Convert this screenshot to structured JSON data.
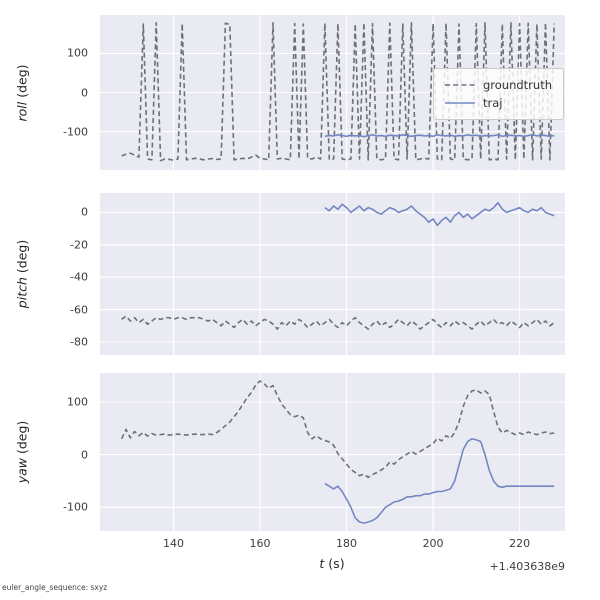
{
  "style": {
    "axes_bg": "#eaeaf2",
    "grid": "#ffffff",
    "tick_color": "#3d3d3d",
    "groundtruth_color": "#6d7176",
    "traj_color": "#7388c2"
  },
  "footer_note": "euler_angle_sequence: sxyz",
  "xaxis": {
    "label_var": "t",
    "label_unit": "(s)",
    "offset_text": "+1.403638e9",
    "lim": [
      123,
      230.5
    ],
    "ticks": [
      140,
      160,
      180,
      200,
      220
    ]
  },
  "chart_data": [
    {
      "type": "line",
      "ylabel_var": "roll",
      "ylabel_unit": "(deg)",
      "ylim": [
        -198,
        198
      ],
      "yticks": [
        -100,
        0,
        100
      ],
      "legend_position": "center right",
      "series": [
        {
          "name": "groundtruth",
          "style": "dashed",
          "color": "#6d7176",
          "x0": 128,
          "dx": 1,
          "y": [
            -162,
            -158,
            -155,
            -160,
            -165,
            175,
            -170,
            -172,
            178,
            -174,
            -170,
            -171,
            -173,
            -170,
            176,
            -172,
            -170,
            -168,
            -170,
            -172,
            -170,
            -169,
            -171,
            -170,
            177,
            174,
            -172,
            -170,
            -168,
            -170,
            -165,
            -160,
            -168,
            -170,
            -172,
            178,
            -170,
            -168,
            -170,
            -172,
            176,
            -170,
            175,
            -168,
            -170,
            -165,
            -170,
            177,
            -172,
            -170,
            176,
            -170,
            -172,
            -170,
            175,
            -170,
            178,
            -172,
            176,
            -170,
            -172,
            -170,
            177,
            -170,
            -172,
            175,
            -170,
            178,
            -172,
            -170,
            -168,
            -170,
            176,
            -170,
            -172,
            177,
            -170,
            -172,
            175,
            -170,
            -172,
            -170,
            176,
            -170,
            178,
            -172,
            -170,
            -172,
            175,
            -170,
            178,
            -172,
            176,
            -170,
            177,
            -172,
            175,
            -170,
            178,
            -172,
            176
          ]
        },
        {
          "name": "traj",
          "style": "solid",
          "color": "#7388c2",
          "x0": 175,
          "dx": 1,
          "y": [
            -112,
            -110,
            -111,
            -108,
            -110,
            -112,
            -109,
            -111,
            -110,
            -113,
            -110,
            -108,
            -111,
            -110,
            -112,
            -109,
            -110,
            -111,
            -108,
            -110,
            -112,
            -110,
            -109,
            -111,
            -110,
            -112,
            -108,
            -110,
            -111,
            -109,
            -112,
            -110,
            -111,
            -108,
            -110,
            -109,
            -112,
            -110,
            -111,
            -110,
            -108,
            -112,
            -110,
            -109,
            -111,
            -110,
            -112,
            -110,
            -108,
            -111,
            -109,
            -110,
            -112,
            -110
          ]
        }
      ]
    },
    {
      "type": "line",
      "ylabel_var": "pitch",
      "ylabel_unit": "(deg)",
      "ylim": [
        -88,
        12
      ],
      "yticks": [
        -80,
        -60,
        -40,
        -20,
        0
      ],
      "series": [
        {
          "name": "groundtruth",
          "style": "dashed",
          "color": "#6d7176",
          "x0": 128,
          "dx": 1,
          "y": [
            -66,
            -64,
            -67,
            -65,
            -68,
            -66,
            -69,
            -67,
            -65,
            -66,
            -65,
            -65,
            -66,
            -65,
            -65,
            -66,
            -65,
            -65,
            -65,
            -66,
            -67,
            -66,
            -68,
            -70,
            -67,
            -69,
            -71,
            -68,
            -66,
            -69,
            -67,
            -70,
            -68,
            -66,
            -67,
            -69,
            -72,
            -68,
            -70,
            -67,
            -69,
            -66,
            -68,
            -71,
            -69,
            -67,
            -70,
            -68,
            -66,
            -69,
            -71,
            -68,
            -70,
            -67,
            -65,
            -68,
            -70,
            -72,
            -69,
            -67,
            -70,
            -68,
            -71,
            -69,
            -66,
            -68,
            -70,
            -67,
            -69,
            -72,
            -70,
            -68,
            -66,
            -69,
            -71,
            -68,
            -70,
            -67,
            -69,
            -68,
            -70,
            -72,
            -69,
            -67,
            -70,
            -68,
            -66,
            -69,
            -68,
            -70,
            -67,
            -69,
            -71,
            -68,
            -70,
            -68,
            -66,
            -69,
            -67,
            -70,
            -68
          ]
        },
        {
          "name": "traj",
          "style": "solid",
          "color": "#7388c2",
          "x0": 175,
          "dx": 1,
          "y": [
            3,
            1,
            4,
            2,
            5,
            3,
            0,
            2,
            4,
            1,
            3,
            2,
            0,
            -1,
            1,
            3,
            2,
            0,
            1,
            2,
            4,
            1,
            -1,
            -3,
            -6,
            -4,
            -8,
            -5,
            -3,
            -6,
            -2,
            0,
            -3,
            -1,
            -4,
            -2,
            0,
            2,
            1,
            3,
            6,
            2,
            0,
            1,
            2,
            3,
            1,
            0,
            2,
            1,
            3,
            0,
            -1,
            -2
          ]
        }
      ]
    },
    {
      "type": "line",
      "ylabel_var": "yaw",
      "ylabel_unit": "(deg)",
      "ylim": [
        -145,
        155
      ],
      "yticks": [
        -100,
        0,
        100
      ],
      "series": [
        {
          "name": "groundtruth",
          "style": "dashed",
          "color": "#6d7176",
          "x0": 128,
          "dx": 1,
          "y": [
            30,
            48,
            32,
            44,
            36,
            42,
            35,
            40,
            37,
            38,
            39,
            37,
            38,
            39,
            38,
            37,
            38,
            39,
            38,
            38,
            39,
            38,
            42,
            48,
            55,
            62,
            72,
            82,
            95,
            108,
            118,
            132,
            140,
            134,
            126,
            131,
            112,
            96,
            86,
            76,
            72,
            75,
            70,
            42,
            30,
            36,
            30,
            27,
            24,
            18,
            2,
            -8,
            -18,
            -28,
            -34,
            -40,
            -37,
            -43,
            -38,
            -34,
            -29,
            -24,
            -14,
            -18,
            -10,
            -4,
            1,
            6,
            1,
            6,
            11,
            16,
            21,
            31,
            26,
            36,
            31,
            42,
            62,
            92,
            112,
            121,
            123,
            117,
            121,
            114,
            82,
            52,
            41,
            46,
            42,
            38,
            41,
            38,
            43,
            40,
            38,
            41,
            43,
            40,
            41
          ]
        },
        {
          "name": "traj",
          "style": "solid",
          "color": "#7388c2",
          "x0": 175,
          "dx": 1,
          "y": [
            -55,
            -60,
            -65,
            -60,
            -70,
            -85,
            -100,
            -120,
            -128,
            -130,
            -128,
            -125,
            -120,
            -110,
            -100,
            -95,
            -90,
            -88,
            -85,
            -80,
            -80,
            -78,
            -78,
            -75,
            -75,
            -72,
            -70,
            -70,
            -68,
            -65,
            -50,
            -20,
            10,
            25,
            30,
            28,
            25,
            0,
            -30,
            -50,
            -60,
            -62,
            -60,
            -60,
            -60,
            -60,
            -60,
            -60,
            -60,
            -60,
            -60,
            -60,
            -60,
            -60
          ]
        }
      ]
    }
  ]
}
